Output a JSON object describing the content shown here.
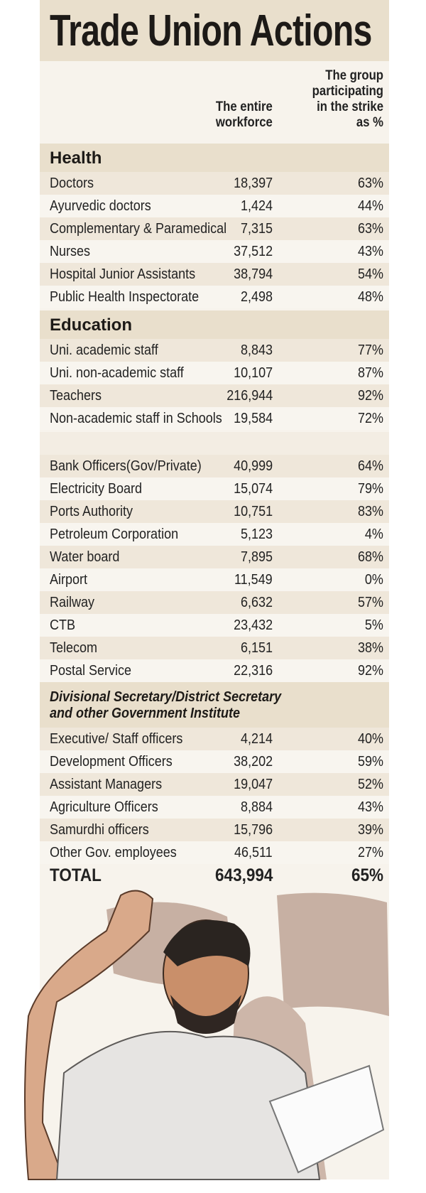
{
  "title": "Trade Union Actions",
  "columns": {
    "workforce": [
      "The entire",
      "workforce"
    ],
    "share": [
      "The group",
      "participating",
      "in the strike",
      "as %"
    ]
  },
  "sections": [
    {
      "title": [
        "Health"
      ],
      "rows": [
        [
          "Doctors",
          "18,397",
          "63%"
        ],
        [
          "Ayurvedic doctors",
          "1,424",
          "44%"
        ],
        [
          "Complementary & Paramedical",
          "7,315",
          "63%"
        ],
        [
          "Nurses",
          "37,512",
          "43%"
        ],
        [
          "Hospital Junior Assistants",
          "38,794",
          "54%"
        ],
        [
          "Public Health Inspectorate",
          "2,498",
          "48%"
        ]
      ]
    },
    {
      "title": [
        "Education"
      ],
      "rows": [
        [
          "Uni. academic staff",
          "8,843",
          "77%"
        ],
        [
          "Uni. non-academic staff",
          "10,107",
          "87%"
        ],
        [
          "Teachers",
          "216,944",
          "92%"
        ],
        [
          "Non-academic staff in Schools",
          "19,584",
          "72%"
        ]
      ]
    },
    {
      "rows": [
        [
          "Bank Officers(Gov/Private)",
          "40,999",
          "64%"
        ],
        [
          "Electricity Board",
          "15,074",
          "79%"
        ],
        [
          "Ports Authority",
          "10,751",
          "83%"
        ],
        [
          "Petroleum Corporation",
          "5,123",
          "4%"
        ],
        [
          "Water board",
          "7,895",
          "68%"
        ],
        [
          "Airport",
          "11,549",
          "0%"
        ],
        [
          "Railway",
          "6,632",
          "57%"
        ],
        [
          "CTB",
          "23,432",
          "5%"
        ],
        [
          "Telecom",
          "6,151",
          "38%"
        ],
        [
          "Postal Service",
          "22,316",
          "92%"
        ]
      ]
    },
    {
      "title": [
        "Divisional Secretary/District Secretary",
        "and other Government Institute"
      ],
      "rows": [
        [
          "Executive/ Staff officers",
          "4,214",
          "40%"
        ],
        [
          "Development Officers",
          "38,202",
          "59%"
        ],
        [
          "Assistant Managers",
          "19,047",
          "52%"
        ],
        [
          "Agriculture Officers",
          "8,884",
          "43%"
        ],
        [
          "Samurdhi officers",
          "15,796",
          "39%"
        ],
        [
          "Other Gov. employees",
          "46,511",
          "27%"
        ]
      ]
    }
  ],
  "total": [
    "TOTAL",
    "643,994",
    "65%"
  ]
}
